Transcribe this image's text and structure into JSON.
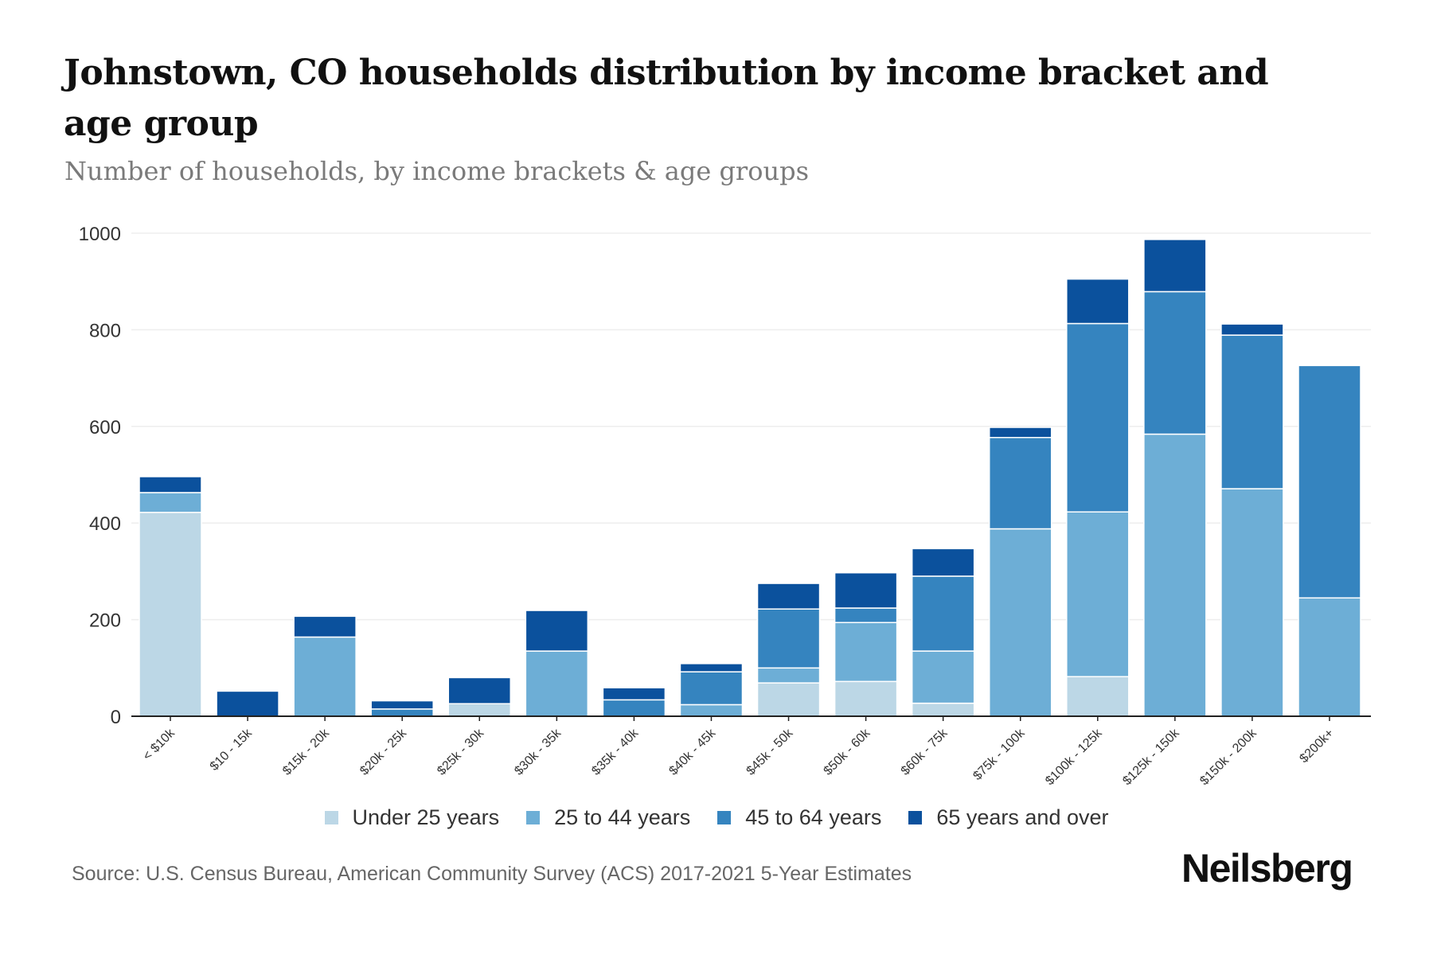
{
  "header": {
    "title": "Johnstown, CO households distribution by income bracket and age group",
    "subtitle": "Number of households, by income brackets & age groups"
  },
  "footer": {
    "source": "Source: U.S. Census Bureau, American Community Survey (ACS) 2017-2021 5-Year Estimates",
    "brand": "Neilsberg"
  },
  "chart_data": {
    "type": "bar",
    "stacked": true,
    "title": "Johnstown, CO households distribution by income bracket and age group",
    "subtitle": "Number of households, by income brackets & age groups",
    "xlabel": "",
    "ylabel": "",
    "ylim": [
      0,
      1000
    ],
    "yticks": [
      0,
      200,
      400,
      600,
      800,
      1000
    ],
    "grid": true,
    "legend_position": "bottom",
    "categories": [
      "< $10k",
      "$10 - 15k",
      "$15k - 20k",
      "$20k - 25k",
      "$25k - 30k",
      "$30k - 35k",
      "$35k - 40k",
      "$40k - 45k",
      "$45k - 50k",
      "$50k - 60k",
      "$60k - 75k",
      "$75k - 100k",
      "$100k - 125k",
      "$125k - 150k",
      "$150k - 200k",
      "$200k+"
    ],
    "series": [
      {
        "name": "Under 25 years",
        "color": "#bcd7e6",
        "values": [
          422,
          0,
          0,
          0,
          26,
          0,
          0,
          0,
          69,
          72,
          27,
          0,
          82,
          0,
          0,
          0
        ]
      },
      {
        "name": "25 to 44 years",
        "color": "#6daed6",
        "values": [
          41,
          0,
          164,
          0,
          0,
          135,
          0,
          24,
          31,
          122,
          108,
          388,
          341,
          584,
          471,
          245
        ]
      },
      {
        "name": "45 to 64 years",
        "color": "#3584bf",
        "values": [
          0,
          0,
          0,
          15,
          0,
          0,
          34,
          68,
          122,
          30,
          155,
          189,
          390,
          295,
          318,
          481
        ]
      },
      {
        "name": "65 years and over",
        "color": "#0b519d",
        "values": [
          33,
          52,
          43,
          17,
          54,
          84,
          25,
          17,
          53,
          73,
          57,
          21,
          92,
          108,
          23,
          0
        ]
      }
    ]
  }
}
